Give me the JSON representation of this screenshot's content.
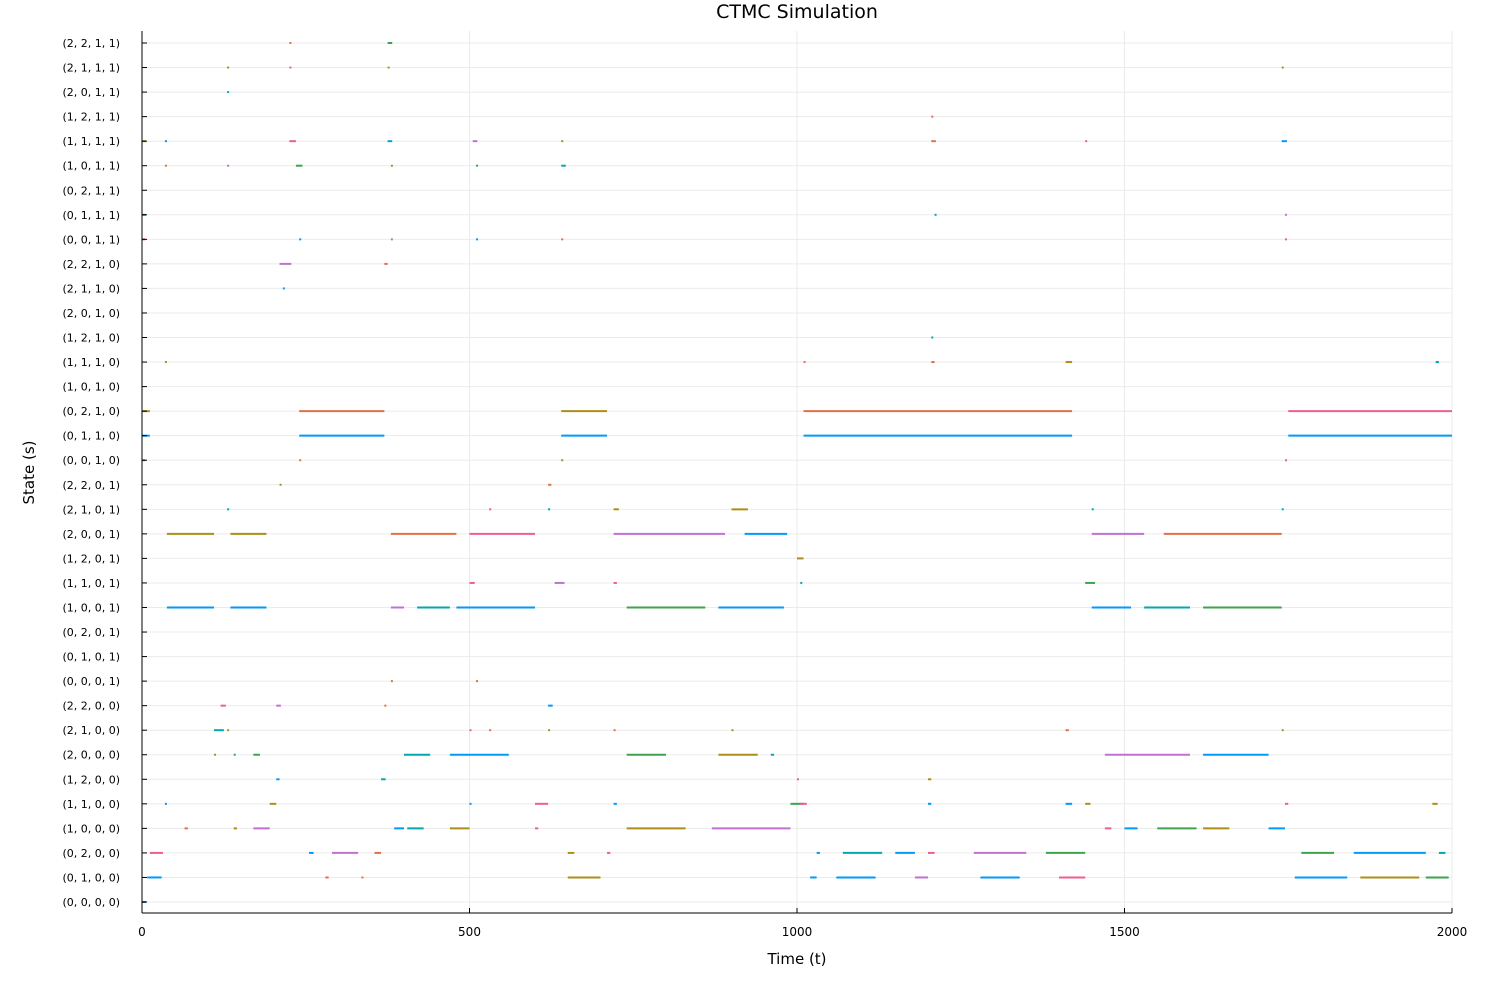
{
  "chart_data": {
    "type": "scatter",
    "title": "CTMC Simulation",
    "xlabel": "Time (t)",
    "ylabel": "State (s)",
    "xlim": [
      0,
      2000
    ],
    "x_ticks": [
      0,
      500,
      1000,
      1500,
      2000
    ],
    "x_tick_labels": [
      "0",
      "500",
      "1000",
      "1500",
      "2000"
    ],
    "grid": true,
    "legend": "none",
    "state_labels": [
      "(0, 0, 0, 0)",
      "(0, 1, 0, 0)",
      "(0, 2, 0, 0)",
      "(1, 0, 0, 0)",
      "(1, 1, 0, 0)",
      "(1, 2, 0, 0)",
      "(2, 0, 0, 0)",
      "(2, 1, 0, 0)",
      "(2, 2, 0, 0)",
      "(0, 0, 0, 1)",
      "(0, 1, 0, 1)",
      "(0, 2, 0, 1)",
      "(1, 0, 0, 1)",
      "(1, 1, 0, 1)",
      "(1, 2, 0, 1)",
      "(2, 0, 0, 1)",
      "(2, 1, 0, 1)",
      "(2, 2, 0, 1)",
      "(0, 0, 1, 0)",
      "(0, 1, 1, 0)",
      "(0, 2, 1, 0)",
      "(1, 0, 1, 0)",
      "(1, 1, 1, 0)",
      "(1, 2, 1, 0)",
      "(2, 0, 1, 0)",
      "(2, 1, 1, 0)",
      "(2, 2, 1, 0)",
      "(0, 0, 1, 1)",
      "(0, 1, 1, 1)",
      "(0, 2, 1, 1)",
      "(1, 0, 1, 1)",
      "(1, 1, 1, 1)",
      "(1, 2, 1, 1)",
      "(2, 0, 1, 1)",
      "(2, 1, 1, 1)",
      "(2, 2, 1, 1)"
    ],
    "palette": [
      "#009af9",
      "#e26f46",
      "#3da44d",
      "#c271d2",
      "#ac8e18",
      "#00a9ad",
      "#ed5e93"
    ],
    "series": [
      {
        "state": "(0, 0, 0, 0)",
        "segments": [
          [
            0,
            6,
            0
          ]
        ]
      },
      {
        "state": "(0, 1, 0, 0)",
        "segments": [
          [
            8,
            30,
            0
          ],
          [
            280,
            285,
            1
          ],
          [
            335,
            338,
            1
          ],
          [
            650,
            700,
            4
          ],
          [
            1020,
            1030,
            0
          ],
          [
            1060,
            1120,
            0
          ],
          [
            1180,
            1200,
            3
          ],
          [
            1280,
            1340,
            0
          ],
          [
            1400,
            1440,
            6
          ],
          [
            1760,
            1840,
            0
          ],
          [
            1860,
            1950,
            4
          ],
          [
            1960,
            1995,
            2
          ]
        ]
      },
      {
        "state": "(0, 2, 0, 0)",
        "segments": [
          [
            12,
            32,
            6
          ],
          [
            255,
            262,
            0
          ],
          [
            290,
            330,
            3
          ],
          [
            355,
            365,
            1
          ],
          [
            650,
            660,
            4
          ],
          [
            710,
            715,
            6
          ],
          [
            1030,
            1035,
            0
          ],
          [
            1070,
            1130,
            5
          ],
          [
            1150,
            1180,
            0
          ],
          [
            1200,
            1210,
            6
          ],
          [
            1270,
            1350,
            3
          ],
          [
            1380,
            1440,
            2
          ],
          [
            1770,
            1820,
            2
          ],
          [
            1850,
            1960,
            0
          ],
          [
            1980,
            1990,
            5
          ]
        ]
      },
      {
        "state": "(1, 0, 0, 0)",
        "segments": [
          [
            65,
            70,
            1
          ],
          [
            140,
            145,
            4
          ],
          [
            170,
            195,
            3
          ],
          [
            385,
            400,
            0
          ],
          [
            405,
            430,
            5
          ],
          [
            470,
            500,
            4
          ],
          [
            600,
            605,
            6
          ],
          [
            740,
            830,
            4
          ],
          [
            870,
            990,
            3
          ],
          [
            1470,
            1480,
            6
          ],
          [
            1500,
            1520,
            0
          ],
          [
            1550,
            1610,
            2
          ],
          [
            1620,
            1660,
            4
          ],
          [
            1720,
            1745,
            0
          ]
        ]
      },
      {
        "state": "(1, 1, 0, 0)",
        "segments": [
          [
            35,
            38,
            0
          ],
          [
            195,
            205,
            4
          ],
          [
            500,
            503,
            0
          ],
          [
            600,
            620,
            6
          ],
          [
            720,
            725,
            0
          ],
          [
            990,
            1010,
            2
          ],
          [
            1005,
            1015,
            6
          ],
          [
            1200,
            1205,
            0
          ],
          [
            1410,
            1420,
            0
          ],
          [
            1440,
            1448,
            4
          ],
          [
            1745,
            1750,
            6
          ],
          [
            1970,
            1978,
            4
          ]
        ]
      },
      {
        "state": "(1, 2, 0, 0)",
        "segments": [
          [
            205,
            210,
            0
          ],
          [
            365,
            372,
            5
          ],
          [
            1000,
            1003,
            6
          ],
          [
            1200,
            1205,
            4
          ]
        ]
      },
      {
        "state": "(2, 0, 0, 0)",
        "segments": [
          [
            110,
            113,
            4
          ],
          [
            140,
            143,
            2
          ],
          [
            170,
            180,
            2
          ],
          [
            400,
            440,
            5
          ],
          [
            470,
            560,
            0
          ],
          [
            740,
            800,
            2
          ],
          [
            880,
            940,
            4
          ],
          [
            960,
            965,
            5
          ],
          [
            1470,
            1600,
            3
          ],
          [
            1620,
            1720,
            0
          ]
        ]
      },
      {
        "state": "(2, 1, 0, 0)",
        "segments": [
          [
            110,
            125,
            5
          ],
          [
            130,
            133,
            4
          ],
          [
            500,
            503,
            6
          ],
          [
            530,
            533,
            1
          ],
          [
            620,
            623,
            4
          ],
          [
            720,
            723,
            1
          ],
          [
            900,
            903,
            4
          ],
          [
            1410,
            1415,
            1
          ],
          [
            1740,
            1743,
            4
          ]
        ]
      },
      {
        "state": "(2, 2, 0, 0)",
        "segments": [
          [
            120,
            128,
            6
          ],
          [
            205,
            212,
            3
          ],
          [
            370,
            373,
            1
          ],
          [
            620,
            627,
            0
          ]
        ]
      },
      {
        "state": "(0, 0, 0, 1)",
        "segments": [
          [
            380,
            383,
            1
          ],
          [
            510,
            513,
            1
          ]
        ]
      },
      {
        "state": "(0, 1, 0, 1)",
        "segments": []
      },
      {
        "state": "(0, 2, 0, 1)",
        "segments": []
      },
      {
        "state": "(1, 0, 0, 1)",
        "segments": [
          [
            38,
            110,
            0
          ],
          [
            135,
            190,
            0
          ],
          [
            380,
            400,
            3
          ],
          [
            420,
            470,
            5
          ],
          [
            480,
            600,
            0
          ],
          [
            740,
            860,
            2
          ],
          [
            880,
            980,
            0
          ],
          [
            1450,
            1510,
            0
          ],
          [
            1530,
            1600,
            5
          ],
          [
            1620,
            1740,
            2
          ]
        ]
      },
      {
        "state": "(1, 1, 0, 1)",
        "segments": [
          [
            500,
            508,
            6
          ],
          [
            630,
            645,
            3
          ],
          [
            720,
            725,
            6
          ],
          [
            1005,
            1008,
            5
          ],
          [
            1440,
            1455,
            2
          ]
        ]
      },
      {
        "state": "(1, 2, 0, 1)",
        "segments": [
          [
            1000,
            1010,
            4
          ]
        ]
      },
      {
        "state": "(2, 0, 0, 1)",
        "segments": [
          [
            38,
            110,
            4
          ],
          [
            135,
            190,
            4
          ],
          [
            380,
            480,
            1
          ],
          [
            500,
            600,
            6
          ],
          [
            720,
            890,
            3
          ],
          [
            920,
            985,
            0
          ],
          [
            1450,
            1530,
            3
          ],
          [
            1560,
            1740,
            1
          ]
        ]
      },
      {
        "state": "(2, 1, 0, 1)",
        "segments": [
          [
            130,
            133,
            5
          ],
          [
            530,
            533,
            6
          ],
          [
            620,
            623,
            5
          ],
          [
            720,
            728,
            4
          ],
          [
            900,
            925,
            4
          ],
          [
            1450,
            1453,
            5
          ],
          [
            1740,
            1743,
            5
          ]
        ]
      },
      {
        "state": "(2, 2, 0, 1)",
        "segments": [
          [
            210,
            213,
            4
          ],
          [
            620,
            625,
            1
          ]
        ]
      },
      {
        "state": "(0, 0, 1, 0)",
        "segments": [
          [
            0,
            5,
            4
          ],
          [
            240,
            243,
            1
          ],
          [
            640,
            643,
            4
          ],
          [
            1745,
            1748,
            6
          ]
        ]
      },
      {
        "state": "(0, 1, 1, 0)",
        "segments": [
          [
            0,
            12,
            0
          ],
          [
            240,
            370,
            0
          ],
          [
            640,
            710,
            0
          ],
          [
            1010,
            1420,
            0
          ],
          [
            1750,
            2000,
            0
          ]
        ]
      },
      {
        "state": "(0, 2, 1, 0)",
        "segments": [
          [
            0,
            12,
            4
          ],
          [
            240,
            370,
            1
          ],
          [
            640,
            710,
            4
          ],
          [
            1010,
            1420,
            1
          ],
          [
            1750,
            2000,
            6
          ]
        ]
      },
      {
        "state": "(1, 0, 1, 0)",
        "segments": []
      },
      {
        "state": "(1, 1, 1, 0)",
        "segments": [
          [
            35,
            38,
            4
          ],
          [
            1010,
            1013,
            1
          ],
          [
            1205,
            1210,
            1
          ],
          [
            1410,
            1420,
            4
          ],
          [
            1975,
            1980,
            5
          ]
        ]
      },
      {
        "state": "(1, 2, 1, 0)",
        "segments": [
          [
            1205,
            1208,
            5
          ]
        ]
      },
      {
        "state": "(2, 0, 1, 0)",
        "segments": []
      },
      {
        "state": "(2, 1, 1, 0)",
        "segments": [
          [
            215,
            218,
            0
          ]
        ]
      },
      {
        "state": "(2, 2, 1, 0)",
        "segments": [
          [
            210,
            228,
            3
          ],
          [
            370,
            375,
            1
          ]
        ]
      },
      {
        "state": "(0, 0, 1, 1)",
        "segments": [
          [
            0,
            5,
            6
          ],
          [
            240,
            243,
            0
          ],
          [
            380,
            383,
            3
          ],
          [
            510,
            513,
            0
          ],
          [
            640,
            643,
            1
          ],
          [
            1745,
            1748,
            6
          ]
        ]
      },
      {
        "state": "(0, 1, 1, 1)",
        "segments": [
          [
            0,
            6,
            5
          ],
          [
            1210,
            1213,
            5
          ],
          [
            1745,
            1748,
            3
          ]
        ]
      },
      {
        "state": "(0, 2, 1, 1)",
        "segments": []
      },
      {
        "state": "(1, 0, 1, 1)",
        "segments": [
          [
            35,
            38,
            1
          ],
          [
            130,
            133,
            3
          ],
          [
            235,
            245,
            2
          ],
          [
            380,
            383,
            4
          ],
          [
            510,
            513,
            2
          ],
          [
            640,
            647,
            5
          ]
        ]
      },
      {
        "state": "(1, 1, 1, 1)",
        "segments": [
          [
            0,
            6,
            4
          ],
          [
            35,
            38,
            0
          ],
          [
            225,
            235,
            6
          ],
          [
            375,
            382,
            0
          ],
          [
            505,
            512,
            3
          ],
          [
            640,
            643,
            4
          ],
          [
            1205,
            1212,
            1
          ],
          [
            1440,
            1443,
            6
          ],
          [
            1740,
            1748,
            0
          ]
        ]
      },
      {
        "state": "(1, 2, 1, 1)",
        "segments": [
          [
            1205,
            1208,
            1
          ]
        ]
      },
      {
        "state": "(2, 0, 1, 1)",
        "segments": [
          [
            130,
            133,
            5
          ]
        ]
      },
      {
        "state": "(2, 1, 1, 1)",
        "segments": [
          [
            130,
            133,
            4
          ],
          [
            225,
            228,
            6
          ],
          [
            375,
            378,
            4
          ],
          [
            1740,
            1743,
            4
          ]
        ]
      },
      {
        "state": "(2, 2, 1, 1)",
        "segments": [
          [
            225,
            228,
            1
          ],
          [
            375,
            382,
            2
          ]
        ]
      }
    ]
  }
}
